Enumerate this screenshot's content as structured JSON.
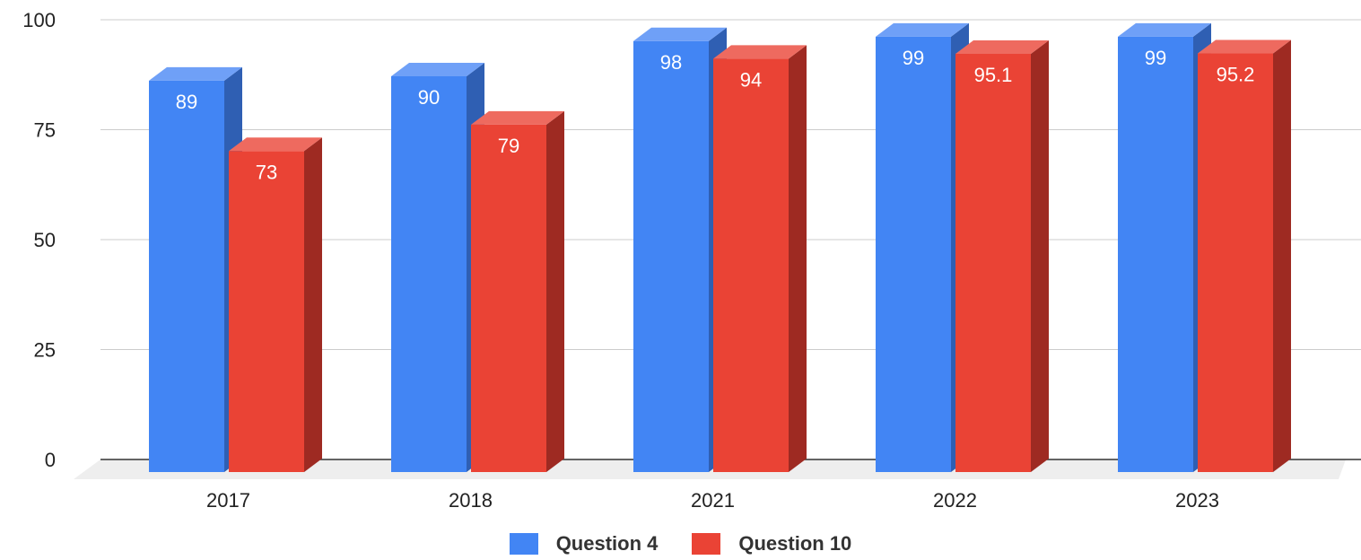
{
  "chart_data": {
    "type": "bar",
    "categories": [
      "2017",
      "2018",
      "2021",
      "2022",
      "2023"
    ],
    "series": [
      {
        "name": "Question 4",
        "values": [
          89,
          90,
          98,
          99,
          99
        ],
        "labels": [
          "89",
          "90",
          "98",
          "99",
          "99"
        ],
        "color": "#4285f4",
        "side_color": "#2f5fb3",
        "top_color": "#6fa0f7"
      },
      {
        "name": "Question 10",
        "values": [
          73,
          79,
          94,
          95.1,
          95.2
        ],
        "labels": [
          "73",
          "79",
          "94",
          "95.1",
          "95.2"
        ],
        "color": "#ea4335",
        "side_color": "#9e2a22",
        "top_color": "#ee6a5f"
      }
    ],
    "y_ticks": [
      "0",
      "25",
      "50",
      "75",
      "100"
    ],
    "ylim": [
      0,
      100
    ],
    "grid": true,
    "legend": "bottom"
  }
}
